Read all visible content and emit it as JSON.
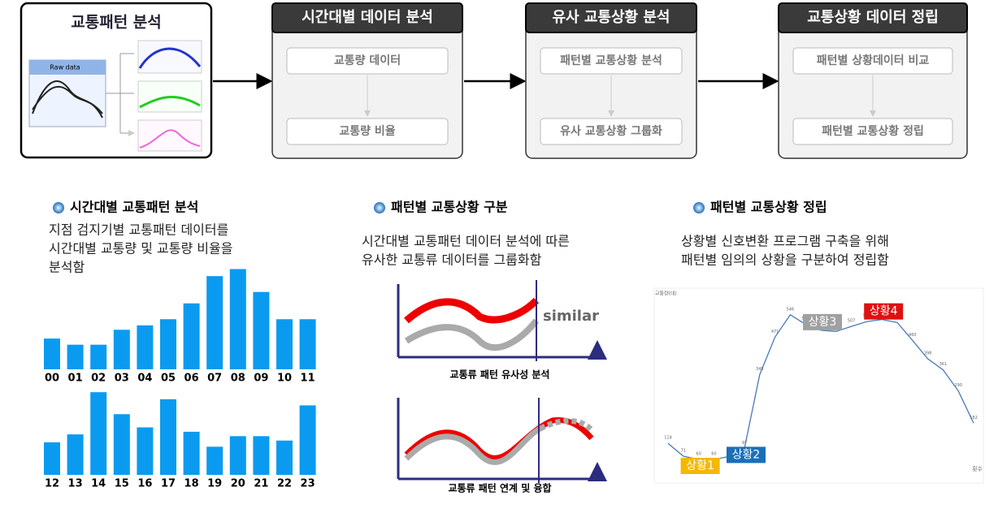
{
  "flow": {
    "steps": [
      {
        "title": "교통패턴 분석",
        "raw_label": "Raw data"
      },
      {
        "title": "시간대별 데이터 분석",
        "items": [
          "교통량 데이터",
          "교통량 비율"
        ]
      },
      {
        "title": "유사 교통상황 분석",
        "items": [
          "패턴별 교통상황 분석",
          "유사 교통상황 그룹화"
        ]
      },
      {
        "title": "교통상황 데이터 정립",
        "items": [
          "패턴별 상황데이터 비교",
          "패턴별 교통상황 정립"
        ]
      }
    ]
  },
  "sections": [
    {
      "heading": "시간대별 교통패턴 분석",
      "lines": [
        "지점 검지기별 교통패턴 데이터를",
        "시간대별 교통량 및 교통량 비율을",
        "분석함"
      ]
    },
    {
      "heading": "패턴별 교통상황 구분",
      "lines": [
        "시간대별 교통패턴 데이터 분석에 따른",
        "유사한 교통류 데이터를 그룹화함"
      ],
      "similar": "similar",
      "captions": [
        "교통류 패턴 유사성 분석",
        "교통류 패턴 연계 및 융합"
      ]
    },
    {
      "heading": "패턴별 교통상황 정립",
      "lines": [
        "상황별 신호변환 프로그램 구축을 위해",
        "패턴별 임의의 상황을 구분하여 정립함"
      ]
    }
  ],
  "hourly_charts": [
    {
      "type": "bar",
      "color": "#0a9bf0",
      "ylim": [
        0,
        120
      ],
      "categories": [
        "00",
        "01",
        "02",
        "03",
        "04",
        "05",
        "06",
        "07",
        "08",
        "09",
        "10",
        "11"
      ],
      "values": [
        35,
        28,
        28,
        45,
        50,
        57,
        75,
        106,
        114,
        88,
        57,
        57
      ]
    },
    {
      "type": "bar",
      "color": "#0a9bf0",
      "ylim": [
        0,
        120
      ],
      "categories": [
        "12",
        "13",
        "14",
        "15",
        "16",
        "17",
        "18",
        "19",
        "20",
        "21",
        "22",
        "23"
      ],
      "values": [
        37,
        46,
        94,
        69,
        54,
        86,
        49,
        32,
        44,
        44,
        39,
        79
      ]
    }
  ],
  "situation_chart": {
    "type": "line",
    "color": "#4a78b8",
    "ylabel": "교통량(대)",
    "xlabel": "횟수",
    "ylim": [
      0,
      600
    ],
    "values": [
      114,
      71,
      60,
      60,
      70,
      97,
      345,
      471,
      546,
      514,
      494,
      490,
      507,
      523,
      530,
      520,
      460,
      398,
      361,
      290,
      182
    ],
    "situations": [
      {
        "label": "상황1",
        "color": "#f5b800",
        "index": 2
      },
      {
        "label": "상황2",
        "color": "#1a6fb8",
        "index": 5
      },
      {
        "label": "상황3",
        "color": "#a0a0a0",
        "index": 10
      },
      {
        "label": "상황4",
        "color": "#e01010",
        "index": 14
      }
    ]
  }
}
